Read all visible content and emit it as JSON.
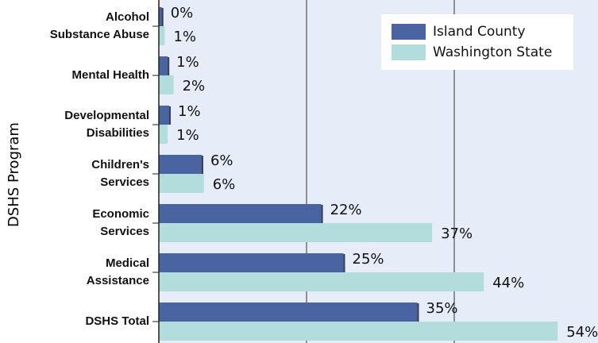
{
  "chart_data": {
    "type": "hbar",
    "y_label": "DSHS Program",
    "categories": [
      [
        "Alcohol",
        "Substance Abuse"
      ],
      [
        "Mental Health"
      ],
      [
        "Developmental",
        "Disabilities"
      ],
      [
        "Children's",
        "Services"
      ],
      [
        "Economic",
        "Services"
      ],
      [
        "Medical",
        "Assistance"
      ],
      [
        "DSHS Total"
      ]
    ],
    "series": [
      {
        "name": "Island County",
        "color": "#4a64a2",
        "values": [
          0.4,
          1.2,
          1.4,
          5.8,
          22,
          25,
          35
        ],
        "value_labels": [
          "0%",
          "1%",
          "1%",
          "6%",
          "22%",
          "25%",
          "35%"
        ]
      },
      {
        "name": "Washington State",
        "color": "#b3dcdc",
        "values": [
          0.8,
          2,
          1.2,
          6.1,
          37,
          44,
          54
        ],
        "value_labels": [
          "1%",
          "2%",
          "1%",
          "6%",
          "37%",
          "44%",
          "54%"
        ]
      }
    ],
    "xlim": [
      0,
      60
    ],
    "xticks": [
      0,
      20,
      40,
      60
    ],
    "grid": true,
    "legend": "top-right"
  }
}
